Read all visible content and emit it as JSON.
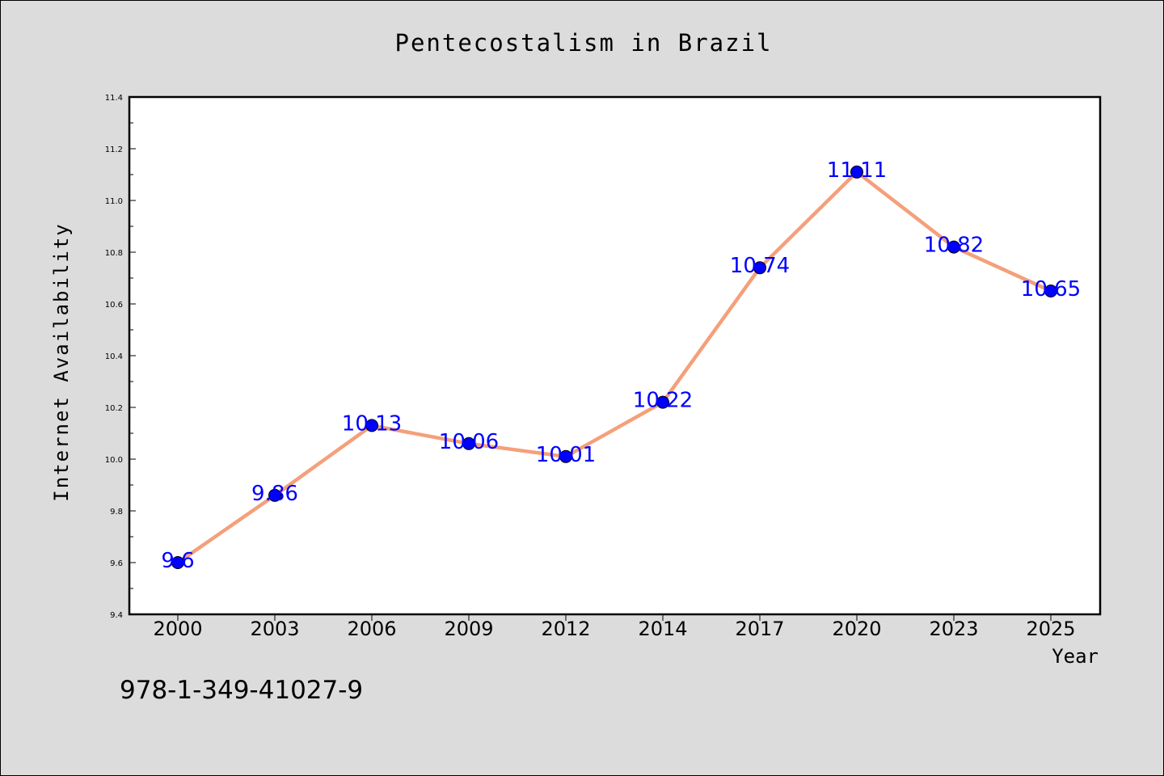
{
  "chart_data": {
    "type": "line",
    "title": "Pentecostalism in Brazil",
    "xlabel": "Year",
    "ylabel": "Internet Availability",
    "categories": [
      "2000",
      "2003",
      "2006",
      "2009",
      "2012",
      "2014",
      "2017",
      "2020",
      "2023",
      "2025"
    ],
    "series": [
      {
        "values": [
          9.6,
          9.86,
          10.13,
          10.06,
          10.01,
          10.22,
          10.74,
          11.11,
          10.82,
          10.65
        ],
        "data_labels": [
          "9.6",
          "9.86",
          "10.13",
          "10.06",
          "10.01",
          "10.22",
          "10.74",
          "11.11",
          "10.82",
          "10.65"
        ],
        "line_color": "#f4a07a",
        "marker_color": "#0000ff"
      }
    ],
    "ylim": [
      9.4,
      11.4
    ],
    "yticks": [
      "9.4",
      "9.6",
      "9.8",
      "10.0",
      "10.2",
      "10.4",
      "10.6",
      "10.8",
      "11.0",
      "11.2",
      "11.4"
    ],
    "grid": false,
    "legend": "none"
  },
  "footer": {
    "isbn": "978-1-349-41027-9"
  }
}
